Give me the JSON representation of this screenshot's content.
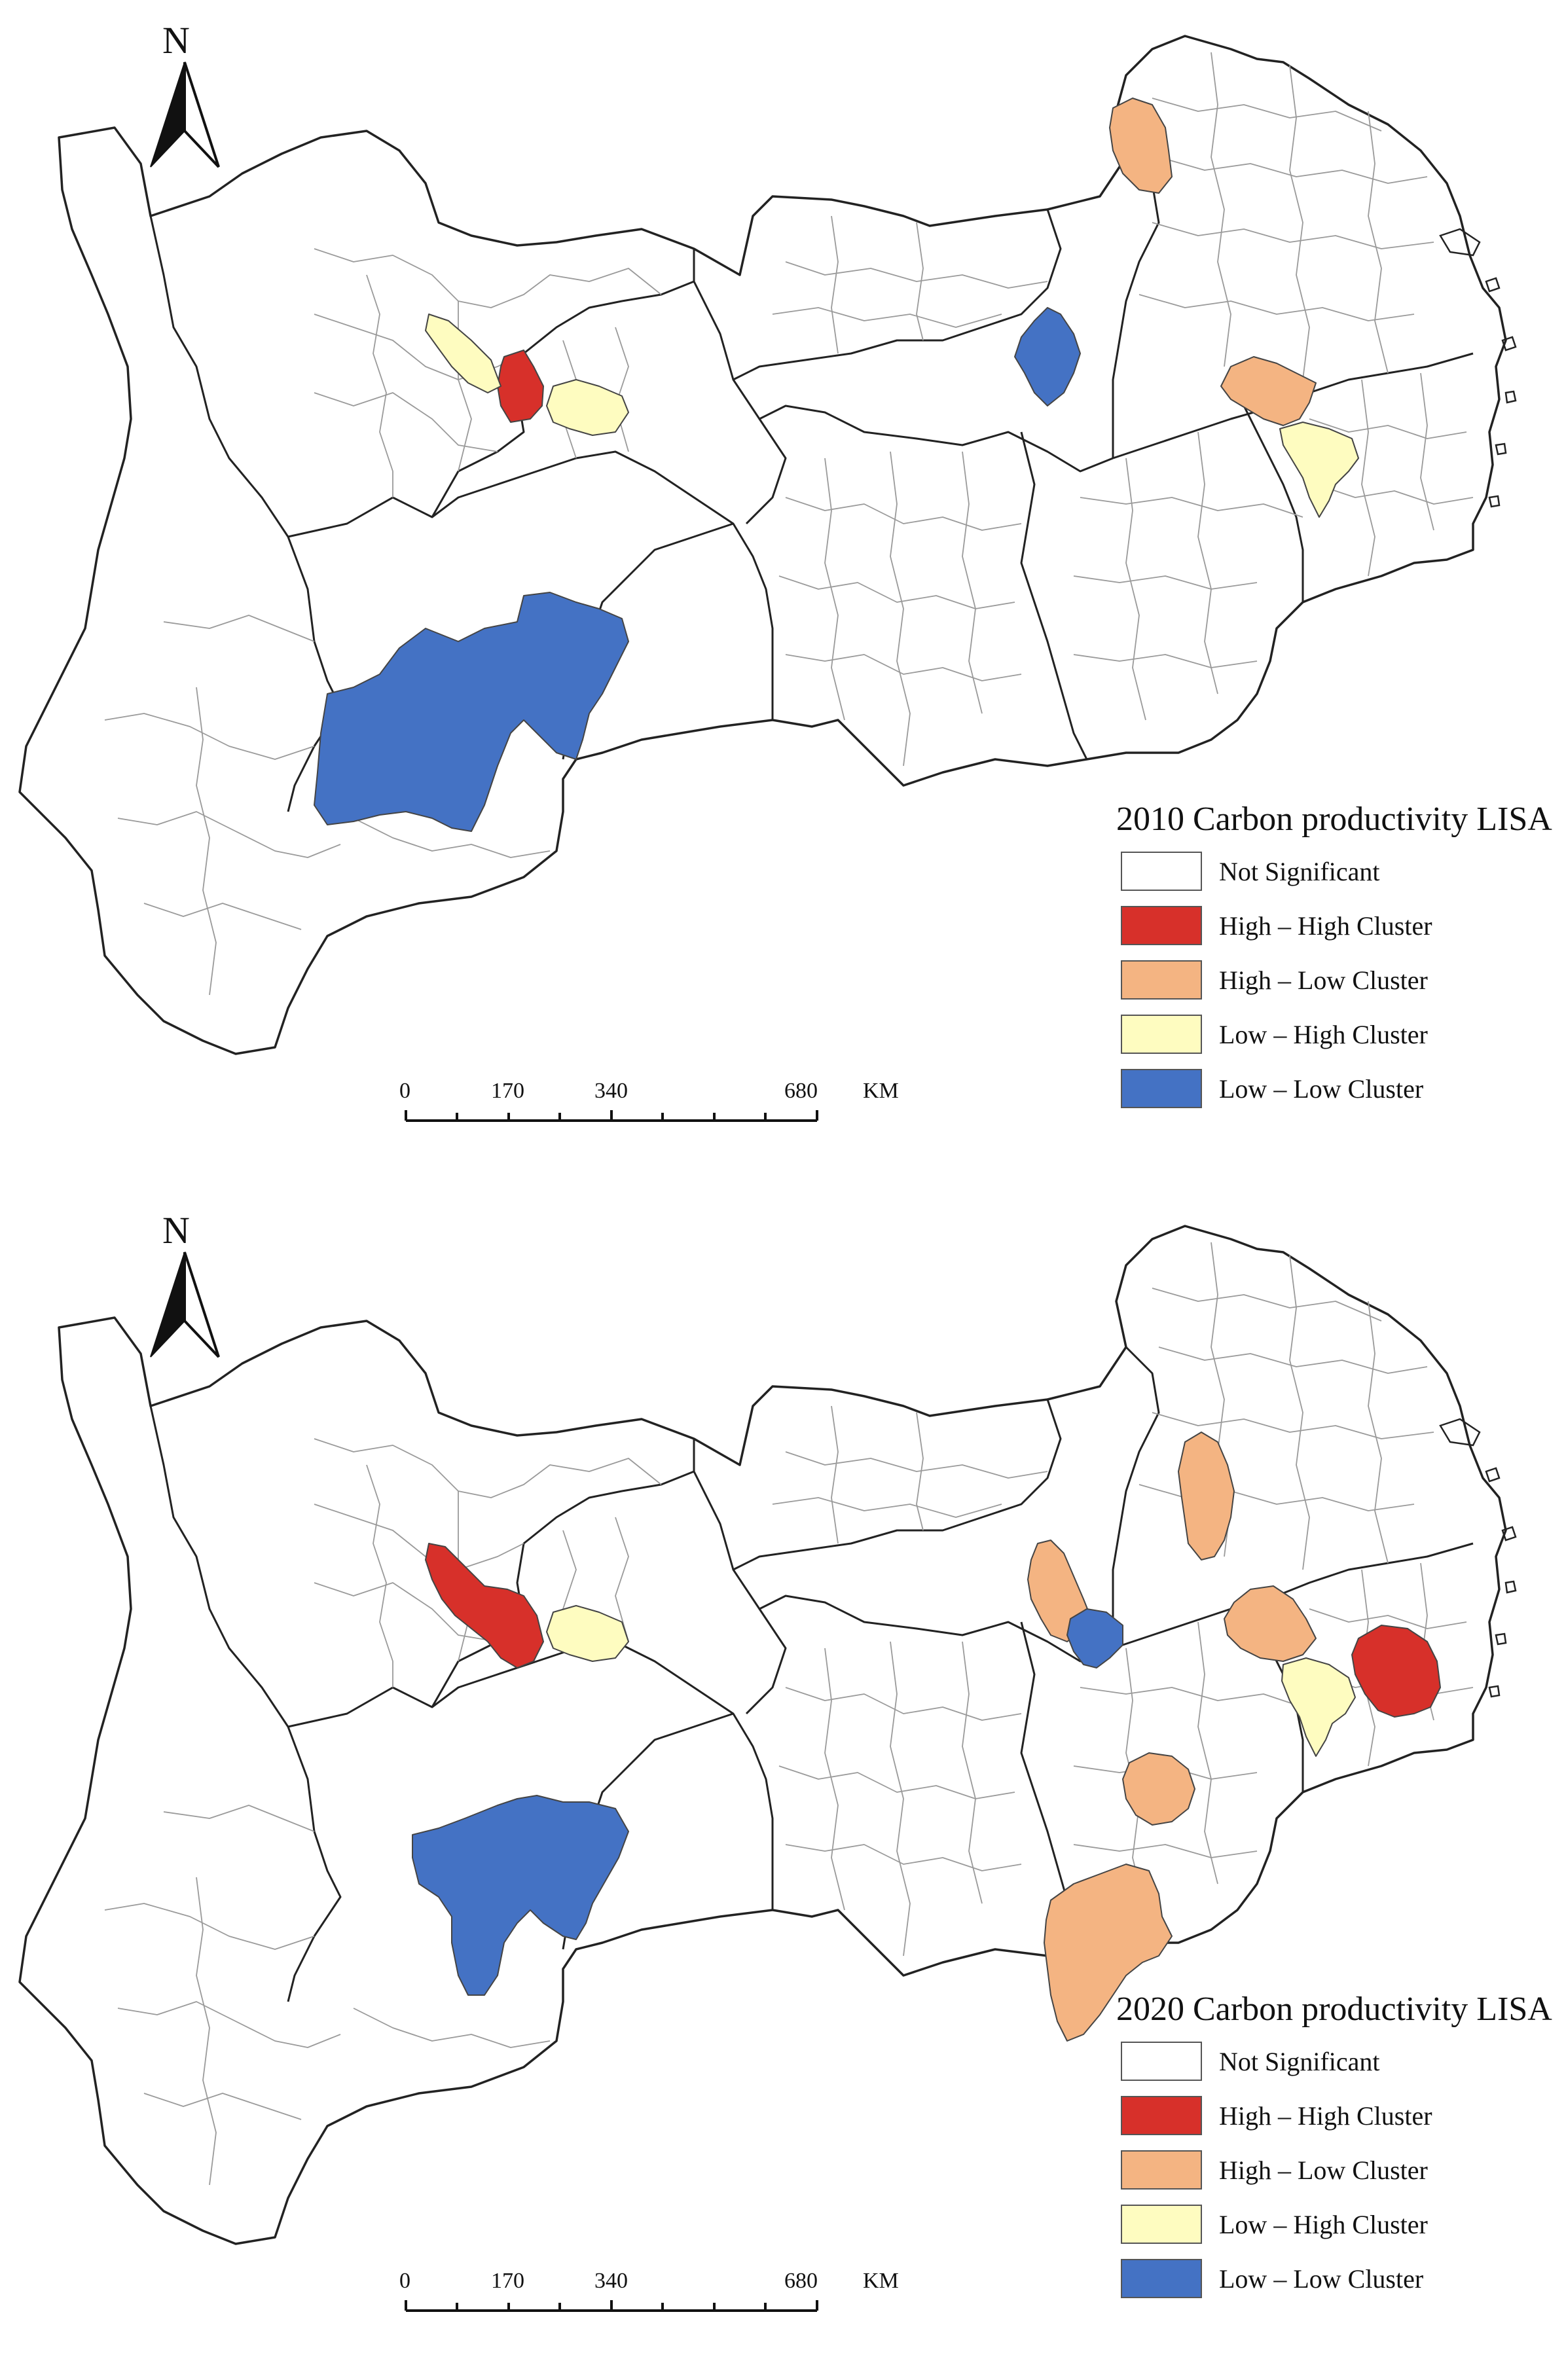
{
  "legend_labels": {
    "not_significant": "Not  Significant",
    "high_high": "High – High  Cluster",
    "high_low": "High – Low  Cluster",
    "low_high": "Low – High  Cluster",
    "low_low": "Low – Low  Cluster"
  },
  "colors": {
    "not_significant": "#ffffff",
    "high_high": "#d7302a",
    "high_low": "#f4b482",
    "low_high": "#fefcc0",
    "low_low": "#4472c4",
    "outline": "#222222",
    "inner_boundary": "#9a9a9a"
  },
  "north_arrow": {
    "label": "N",
    "icon": "north-arrow-icon"
  },
  "scale_bar": {
    "ticks": [
      "0",
      "170",
      "340",
      "680"
    ],
    "unit": "KM"
  },
  "maps": [
    {
      "year_title": "2010  Carbon productivity LISA",
      "regions": [
        {
          "name": "high-high-cluster",
          "category": "high_high",
          "approx_location": "central-west"
        },
        {
          "name": "low-high-cluster",
          "category": "low_high",
          "approx_location": "central-west"
        },
        {
          "name": "low-high-cluster",
          "category": "low_high",
          "approx_location": "central-west"
        },
        {
          "name": "low-low-cluster",
          "category": "low_low",
          "approx_location": "southwest"
        },
        {
          "name": "low-low-cluster",
          "category": "low_low",
          "approx_location": "central"
        },
        {
          "name": "high-low-cluster",
          "category": "high_low",
          "approx_location": "northeast"
        },
        {
          "name": "high-low-cluster",
          "category": "high_low",
          "approx_location": "east"
        },
        {
          "name": "low-high-cluster",
          "category": "low_high",
          "approx_location": "east"
        }
      ]
    },
    {
      "year_title": "2020  Carbon productivity LISA",
      "regions": [
        {
          "name": "high-high-cluster",
          "category": "high_high",
          "approx_location": "central-west"
        },
        {
          "name": "low-high-cluster",
          "category": "low_high",
          "approx_location": "central-west"
        },
        {
          "name": "low-low-cluster",
          "category": "low_low",
          "approx_location": "southwest"
        },
        {
          "name": "high-low-cluster",
          "category": "high_low",
          "approx_location": "central"
        },
        {
          "name": "low-low-cluster",
          "category": "low_low",
          "approx_location": "central"
        },
        {
          "name": "high-low-cluster",
          "category": "high_low",
          "approx_location": "northeast"
        },
        {
          "name": "high-low-cluster",
          "category": "high_low",
          "approx_location": "east"
        },
        {
          "name": "low-high-cluster",
          "category": "low_high",
          "approx_location": "east"
        },
        {
          "name": "high-high-cluster",
          "category": "high_high",
          "approx_location": "east"
        },
        {
          "name": "high-low-cluster",
          "category": "high_low",
          "approx_location": "southeast"
        },
        {
          "name": "high-low-cluster",
          "category": "high_low",
          "approx_location": "southeast"
        }
      ]
    }
  ]
}
